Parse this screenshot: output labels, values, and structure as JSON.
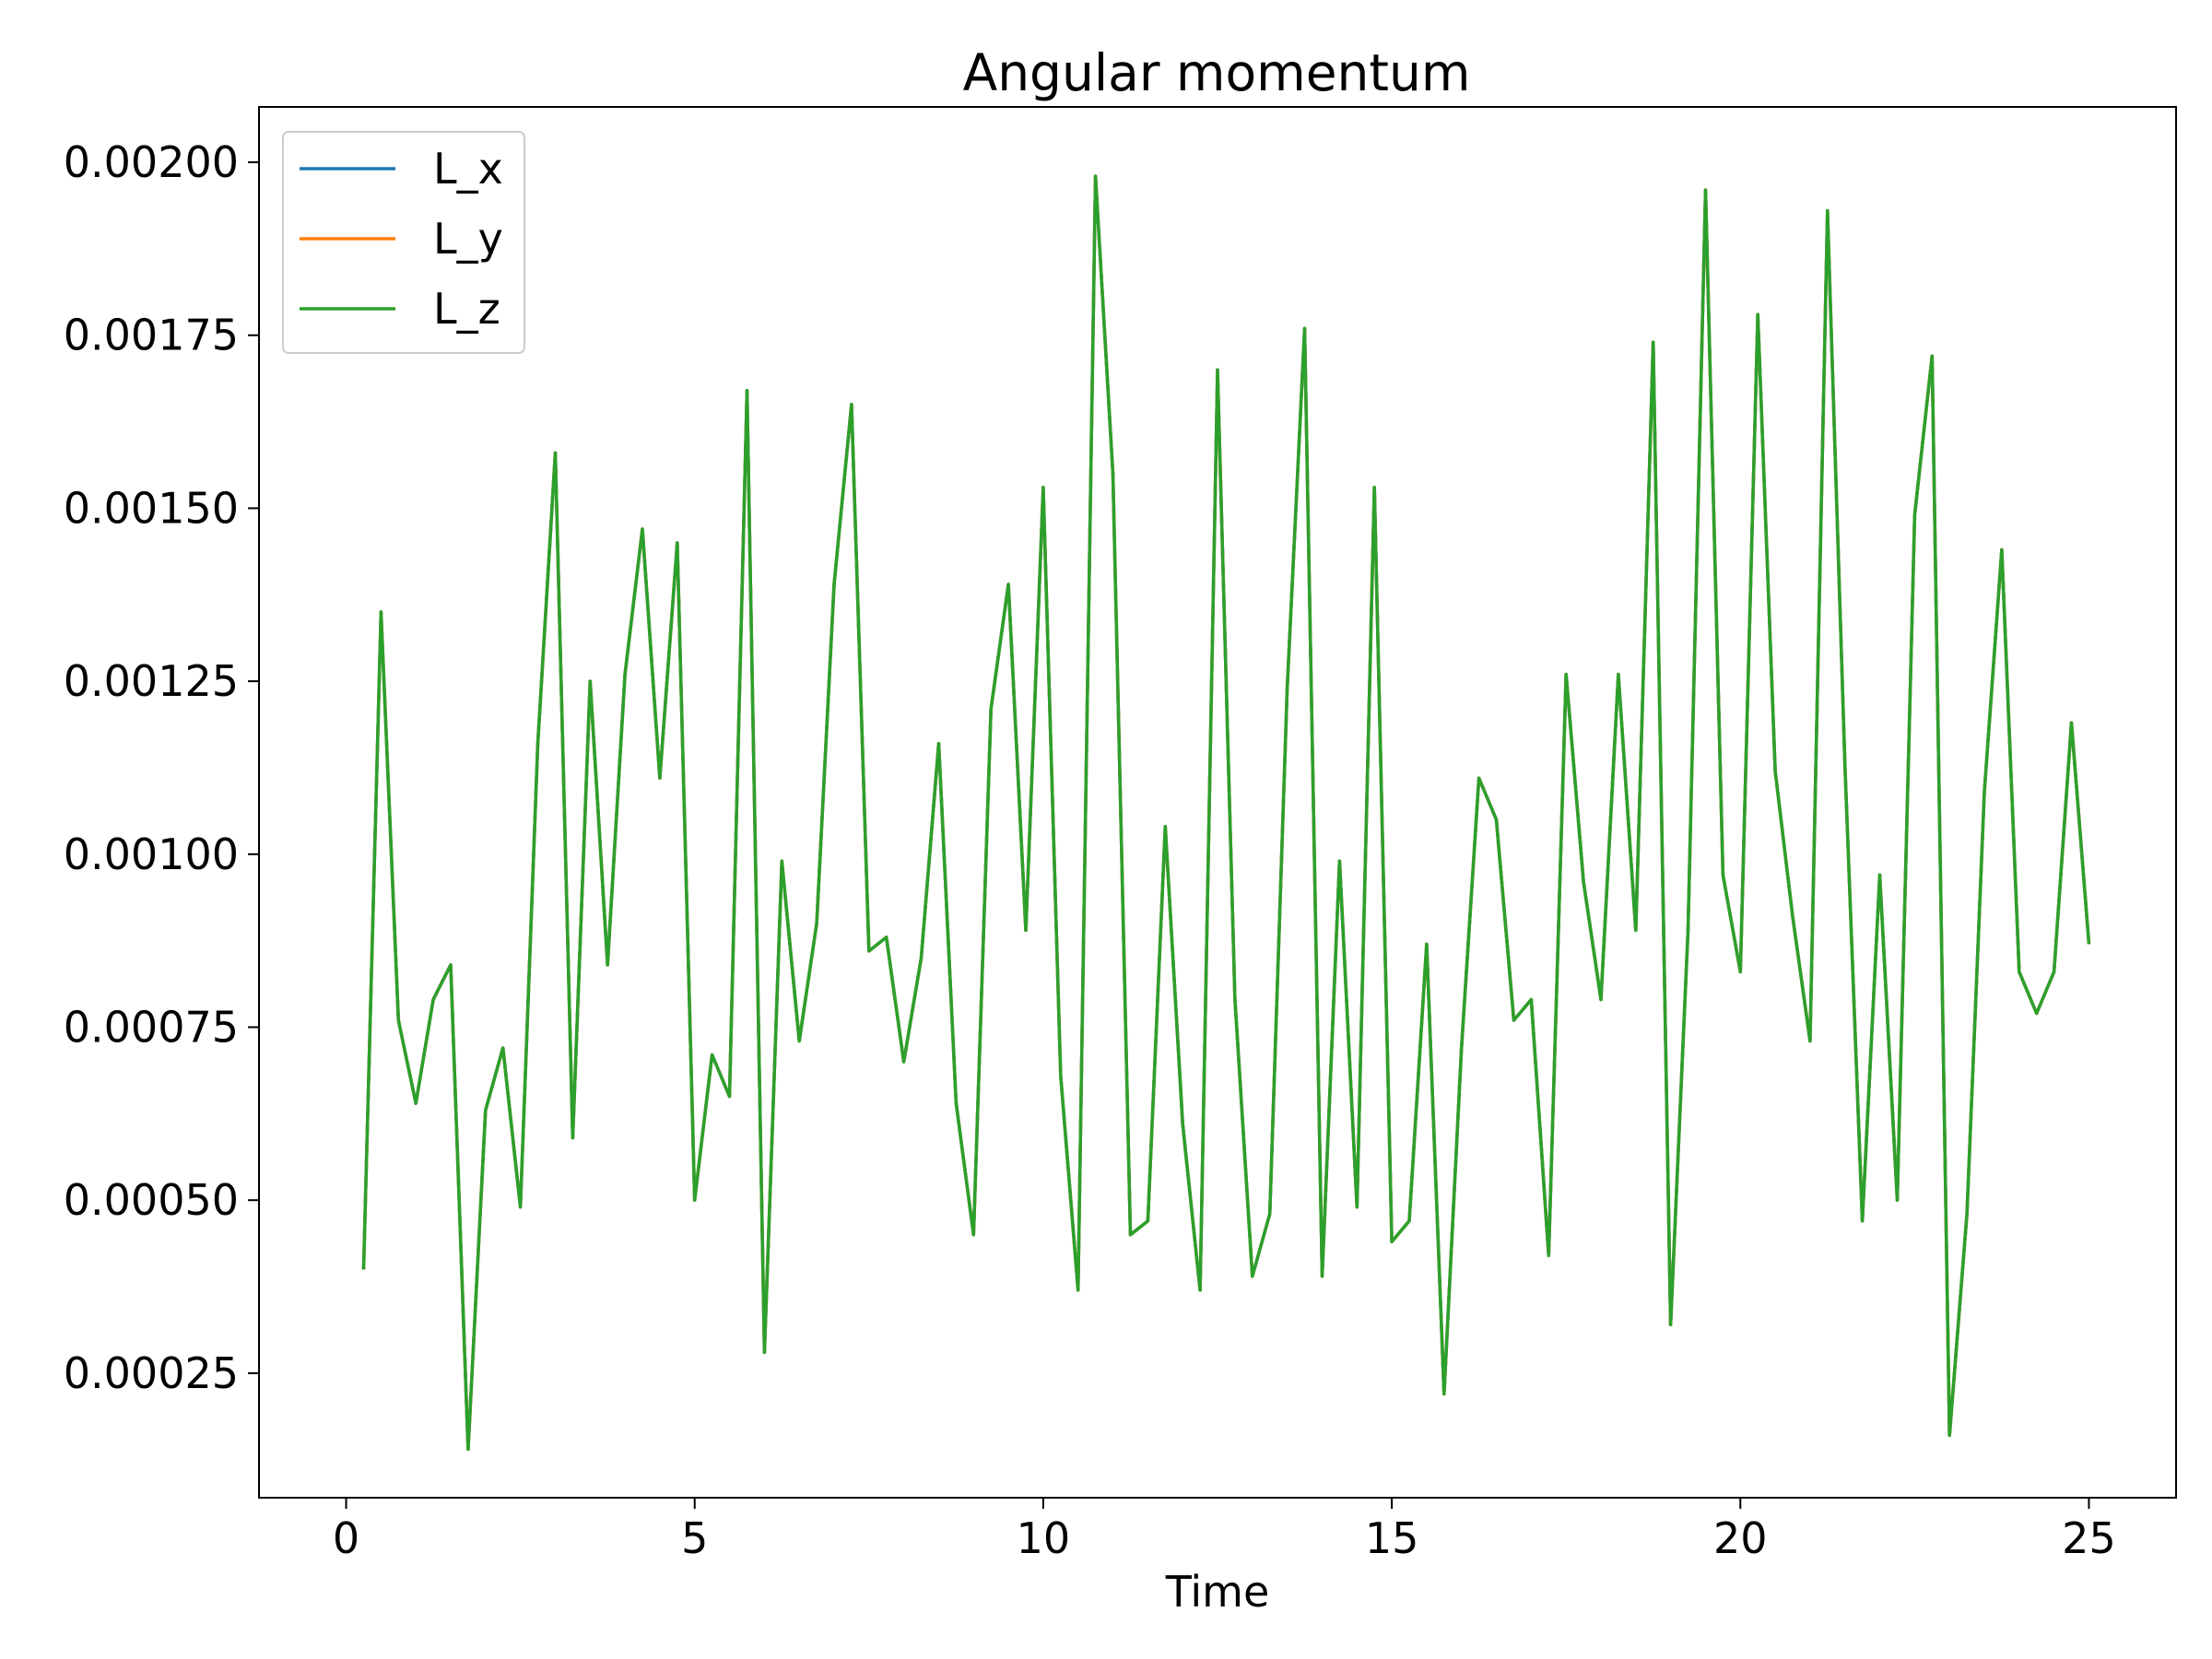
{
  "chart_data": {
    "type": "line",
    "title": "Angular momentum",
    "xlabel": "Time",
    "ylabel": "",
    "xlim": [
      -1.25,
      26.25
    ],
    "ylim": [
      7e-05,
      0.00208
    ],
    "xticks": [
      0,
      5,
      10,
      15,
      20,
      25
    ],
    "xtick_labels": [
      "0",
      "5",
      "10",
      "15",
      "20",
      "25"
    ],
    "yticks": [
      0.00025,
      0.0005,
      0.00075,
      0.001,
      0.00125,
      0.0015,
      0.00175,
      0.002
    ],
    "ytick_labels": [
      "0.00025",
      "0.00050",
      "0.00075",
      "0.00100",
      "0.00125",
      "0.00150",
      "0.00175",
      "0.00200"
    ],
    "grid": false,
    "legend": "upper-left",
    "x": [
      0.25,
      0.5,
      0.75,
      1.0,
      1.25,
      1.5,
      1.75,
      2.0,
      2.25,
      2.5,
      2.75,
      3.0,
      3.25,
      3.5,
      3.75,
      4.0,
      4.25,
      4.5,
      4.75,
      5.0,
      5.25,
      5.5,
      5.75,
      6.0,
      6.25,
      6.5,
      6.75,
      7.0,
      7.25,
      7.5,
      7.75,
      8.0,
      8.25,
      8.5,
      8.75,
      9.0,
      9.25,
      9.5,
      9.75,
      10.0,
      10.25,
      10.5,
      10.75,
      11.0,
      11.25,
      11.5,
      11.75,
      12.0,
      12.25,
      12.5,
      12.75,
      13.0,
      13.25,
      13.5,
      13.75,
      14.0,
      14.25,
      14.5,
      14.75,
      15.0,
      15.25,
      15.5,
      15.75,
      16.0,
      16.25,
      16.5,
      16.75,
      17.0,
      17.25,
      17.5,
      17.75,
      18.0,
      18.25,
      18.5,
      18.75,
      19.0,
      19.25,
      19.5,
      19.75,
      20.0,
      20.25,
      20.5,
      20.75,
      21.0,
      21.25,
      21.5,
      21.75,
      22.0,
      22.25,
      22.5,
      22.75,
      23.0,
      23.25,
      23.5,
      23.75,
      24.0,
      24.25,
      24.5,
      24.75,
      25.0
    ],
    "series": [
      {
        "name": "L_x",
        "color": "#1f77b4",
        "values": [
          0.0004,
          0.00135,
          0.00076,
          0.00064,
          0.00079,
          0.00084,
          0.00014,
          0.00063,
          0.00072,
          0.00049,
          0.00116,
          0.00158,
          0.00059,
          0.00125,
          0.00084,
          0.00126,
          0.00147,
          0.00111,
          0.00145,
          0.0005,
          0.00071,
          0.00065,
          0.00167,
          0.00028,
          0.00099,
          0.00073,
          0.0009,
          0.00139,
          0.00165,
          0.00086,
          0.00088,
          0.0007,
          0.00085,
          0.00116,
          0.00064,
          0.00045,
          0.00121,
          0.00139,
          0.00089,
          0.00153,
          0.00068,
          0.00037,
          0.00198,
          0.00155,
          0.00045,
          0.00047,
          0.00104,
          0.00061,
          0.00037,
          0.0017,
          0.00079,
          0.00039,
          0.00048,
          0.00124,
          0.00176,
          0.00039,
          0.00099,
          0.00049,
          0.00153,
          0.00044,
          0.00047,
          0.00087,
          0.00022,
          0.00072,
          0.00111,
          0.00105,
          0.00076,
          0.00079,
          0.00042,
          0.00126,
          0.00096,
          0.00079,
          0.00126,
          0.00089,
          0.00174,
          0.00032,
          0.00089,
          0.00196,
          0.00097,
          0.00083,
          0.00178,
          0.00112,
          0.00091,
          0.00073,
          0.00193,
          0.00113,
          0.00047,
          0.00097,
          0.0005,
          0.00149,
          0.00172,
          0.00016,
          0.00048,
          0.00109,
          0.00144,
          0.00083,
          0.00077,
          0.00083,
          0.00119,
          0.00087
        ]
      },
      {
        "name": "L_y",
        "color": "#ff7f0e",
        "values": [
          0.0004,
          0.00135,
          0.00076,
          0.00064,
          0.00079,
          0.00084,
          0.00014,
          0.00063,
          0.00072,
          0.00049,
          0.00116,
          0.00158,
          0.00059,
          0.00125,
          0.00084,
          0.00126,
          0.00147,
          0.00111,
          0.00145,
          0.0005,
          0.00071,
          0.00065,
          0.00167,
          0.00028,
          0.00099,
          0.00073,
          0.0009,
          0.00139,
          0.00165,
          0.00086,
          0.00088,
          0.0007,
          0.00085,
          0.00116,
          0.00064,
          0.00045,
          0.00121,
          0.00139,
          0.00089,
          0.00153,
          0.00068,
          0.00037,
          0.00198,
          0.00155,
          0.00045,
          0.00047,
          0.00104,
          0.00061,
          0.00037,
          0.0017,
          0.00079,
          0.00039,
          0.00048,
          0.00124,
          0.00176,
          0.00039,
          0.00099,
          0.00049,
          0.00153,
          0.00044,
          0.00047,
          0.00087,
          0.00022,
          0.00072,
          0.00111,
          0.00105,
          0.00076,
          0.00079,
          0.00042,
          0.00126,
          0.00096,
          0.00079,
          0.00126,
          0.00089,
          0.00174,
          0.00032,
          0.00089,
          0.00196,
          0.00097,
          0.00083,
          0.00178,
          0.00112,
          0.00091,
          0.00073,
          0.00193,
          0.00113,
          0.00047,
          0.00097,
          0.0005,
          0.00149,
          0.00172,
          0.00016,
          0.00048,
          0.00109,
          0.00144,
          0.00083,
          0.00077,
          0.00083,
          0.00119,
          0.00087
        ]
      },
      {
        "name": "L_z",
        "color": "#2ca02c",
        "values": [
          0.0004,
          0.00135,
          0.00076,
          0.00064,
          0.00079,
          0.00084,
          0.00014,
          0.00063,
          0.00072,
          0.00049,
          0.00116,
          0.00158,
          0.00059,
          0.00125,
          0.00084,
          0.00126,
          0.00147,
          0.00111,
          0.00145,
          0.0005,
          0.00071,
          0.00065,
          0.00167,
          0.00028,
          0.00099,
          0.00073,
          0.0009,
          0.00139,
          0.00165,
          0.00086,
          0.00088,
          0.0007,
          0.00085,
          0.00116,
          0.00064,
          0.00045,
          0.00121,
          0.00139,
          0.00089,
          0.00153,
          0.00068,
          0.00037,
          0.00198,
          0.00155,
          0.00045,
          0.00047,
          0.00104,
          0.00061,
          0.00037,
          0.0017,
          0.00079,
          0.00039,
          0.00048,
          0.00124,
          0.00176,
          0.00039,
          0.00099,
          0.00049,
          0.00153,
          0.00044,
          0.00047,
          0.00087,
          0.00022,
          0.00072,
          0.00111,
          0.00105,
          0.00076,
          0.00079,
          0.00042,
          0.00126,
          0.00096,
          0.00079,
          0.00126,
          0.00089,
          0.00174,
          0.00032,
          0.00089,
          0.00196,
          0.00097,
          0.00083,
          0.00178,
          0.00112,
          0.00091,
          0.00073,
          0.00193,
          0.00113,
          0.00047,
          0.00097,
          0.0005,
          0.00149,
          0.00172,
          0.00016,
          0.00048,
          0.00109,
          0.00144,
          0.00083,
          0.00077,
          0.00083,
          0.00119,
          0.00087
        ]
      }
    ]
  }
}
